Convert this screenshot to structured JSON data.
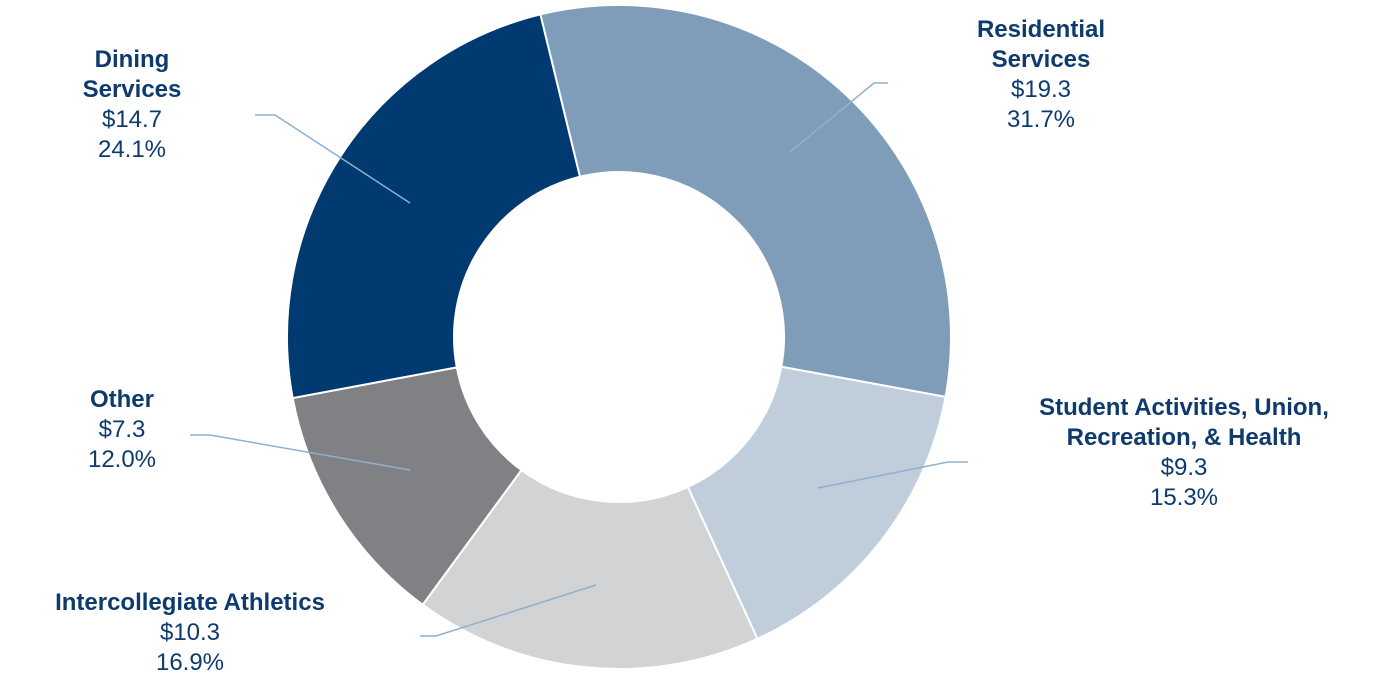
{
  "chart_data": {
    "type": "donut",
    "categories": [
      "Residential Services",
      "Student Activities, Union, Recreation, & Health",
      "Intercollegiate Athletics",
      "Other",
      "Dining Services"
    ],
    "values": [
      19.3,
      9.3,
      10.3,
      7.3,
      14.7
    ],
    "value_labels": [
      "$19.3",
      "$9.3",
      "$10.3",
      "$7.3",
      "$14.7"
    ],
    "percents": [
      31.7,
      15.3,
      16.9,
      12.0,
      24.1
    ],
    "percent_labels": [
      "31.7%",
      "15.3%",
      "16.9%",
      "12.0%",
      "24.1%"
    ],
    "colors": [
      "#7f9db9",
      "#c0cedc",
      "#d2d3d5",
      "#808184",
      "#003a70"
    ]
  }
}
